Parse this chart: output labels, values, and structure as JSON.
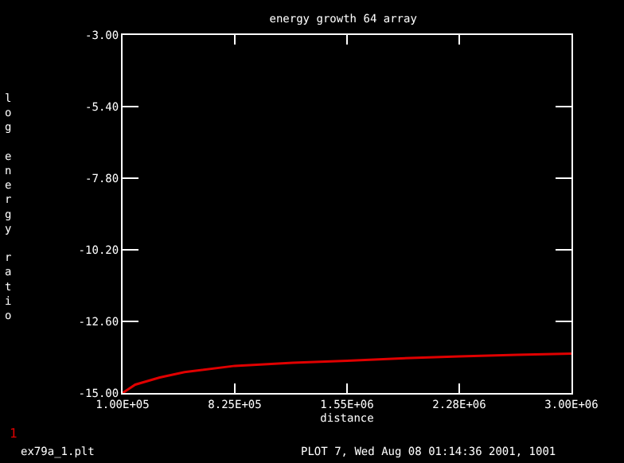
{
  "chart_data": {
    "type": "line",
    "title": "energy growth 64 array",
    "xlabel": "distance",
    "ylabel": "log energy ratio",
    "x": [
      100000,
      182000,
      340000,
      500000,
      825000,
      1200000,
      1550000,
      1900000,
      2275000,
      2650000,
      3000000
    ],
    "series": [
      {
        "name": "1",
        "color": "#e00000",
        "values": [
          -15,
          -14.72,
          -14.48,
          -14.3,
          -14.09,
          -13.99,
          -13.92,
          -13.84,
          -13.77,
          -13.72,
          -13.68
        ]
      }
    ],
    "xlim": [
      100000,
      3000000
    ],
    "xticks": [
      {
        "value": 100000,
        "label": "1.00E+05"
      },
      {
        "value": 825000,
        "label": "8.25E+05"
      },
      {
        "value": 1550000,
        "label": "1.55E+06"
      },
      {
        "value": 2275000,
        "label": "2.28E+06"
      },
      {
        "value": 3000000,
        "label": "3.00E+06"
      }
    ],
    "ylim": [
      -15,
      -3
    ],
    "yticks": [
      {
        "value": -15,
        "label": "-15.00"
      },
      {
        "value": -12.6,
        "label": "-12.60"
      },
      {
        "value": -10.2,
        "label": "-10.20"
      },
      {
        "value": -7.8,
        "label": "-7.80"
      },
      {
        "value": -5.4,
        "label": "-5.40"
      },
      {
        "value": -3,
        "label": "-3.00"
      }
    ],
    "grid": false,
    "legend": "bottom left",
    "marker": "none",
    "line_style": "solid",
    "annotations": [
      "ex79a_1.plt",
      "PLOT 7, Wed Aug 08 01:14:36 2001, 1001"
    ]
  }
}
